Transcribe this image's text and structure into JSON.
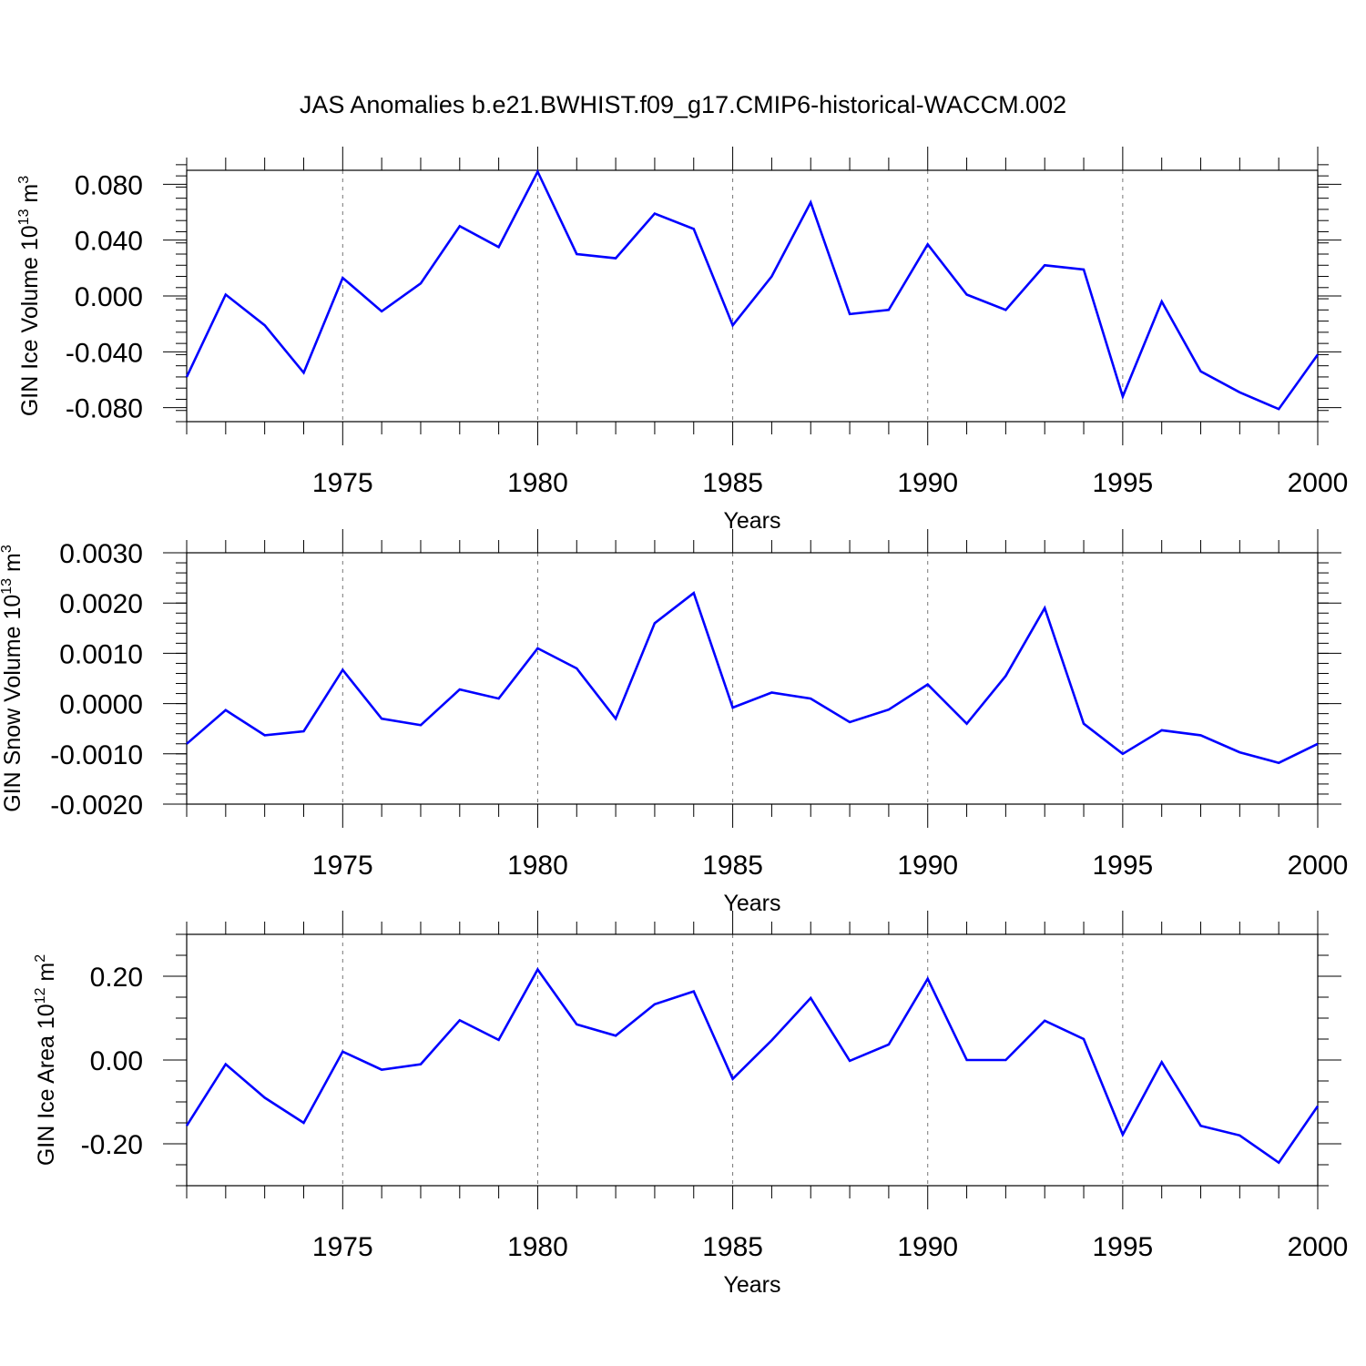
{
  "title": "JAS Anomalies b.e21.BWHIST.f09_g17.CMIP6-historical-WACCM.002",
  "colors": {
    "series": "#0000ff",
    "axis": "#000000",
    "grid": "#777777"
  },
  "chart_data": [
    {
      "type": "line",
      "name": "ice-volume",
      "ylabel": {
        "text": "GIN Ice Volume 10",
        "sup": "13",
        "unit": " m",
        "unit_sup": "3"
      },
      "xlabel": "Years",
      "xlim": [
        1971,
        2000
      ],
      "ylim": [
        -0.09,
        0.09
      ],
      "yticks": [
        -0.08,
        -0.04,
        0.0,
        0.04,
        0.08
      ],
      "ytick_labels": [
        "-0.080",
        "-0.040",
        "0.000",
        "0.040",
        "0.080"
      ],
      "yminor_step": 0.008,
      "xticks": [
        1975,
        1980,
        1985,
        1990,
        1995,
        2000
      ],
      "xtick_labels": [
        "1975",
        "1980",
        "1985",
        "1990",
        "1995",
        "2000"
      ],
      "grid_x": [
        1975,
        1980,
        1985,
        1990,
        1995
      ],
      "x": [
        1971,
        1972,
        1973,
        1974,
        1975,
        1976,
        1977,
        1978,
        1979,
        1980,
        1981,
        1982,
        1983,
        1984,
        1985,
        1986,
        1987,
        1988,
        1989,
        1990,
        1991,
        1992,
        1993,
        1994,
        1995,
        1996,
        1997,
        1998,
        1999,
        2000
      ],
      "values": [
        -0.058,
        0.001,
        -0.021,
        -0.055,
        0.013,
        -0.011,
        0.009,
        0.05,
        0.035,
        0.089,
        0.03,
        0.027,
        0.059,
        0.048,
        -0.021,
        0.014,
        0.067,
        -0.013,
        -0.01,
        0.037,
        0.001,
        -0.01,
        0.022,
        0.019,
        -0.072,
        -0.004,
        -0.054,
        -0.069,
        -0.081,
        -0.042
      ]
    },
    {
      "type": "line",
      "name": "snow-volume",
      "ylabel": {
        "text": "GIN Snow Volume 10",
        "sup": "13",
        "unit": " m",
        "unit_sup": "3"
      },
      "xlabel": "Years",
      "xlim": [
        1971,
        2000
      ],
      "ylim": [
        -0.002,
        0.003
      ],
      "yticks": [
        -0.002,
        -0.001,
        0.0,
        0.001,
        0.002,
        0.003
      ],
      "ytick_labels": [
        "-0.0020",
        "-0.0010",
        "0.0000",
        "0.0010",
        "0.0020",
        "0.0030"
      ],
      "yminor_step": 0.0002,
      "xticks": [
        1975,
        1980,
        1985,
        1990,
        1995,
        2000
      ],
      "xtick_labels": [
        "1975",
        "1980",
        "1985",
        "1990",
        "1995",
        "2000"
      ],
      "grid_x": [
        1975,
        1980,
        1985,
        1990,
        1995
      ],
      "x": [
        1971,
        1972,
        1973,
        1974,
        1975,
        1976,
        1977,
        1978,
        1979,
        1980,
        1981,
        1982,
        1983,
        1984,
        1985,
        1986,
        1987,
        1988,
        1989,
        1990,
        1991,
        1992,
        1993,
        1994,
        1995,
        1996,
        1997,
        1998,
        1999,
        2000
      ],
      "values": [
        -0.0008,
        -0.00013,
        -0.00063,
        -0.00055,
        0.00067,
        -0.0003,
        -0.00043,
        0.00028,
        0.0001,
        0.0011,
        0.0007,
        -0.0003,
        0.0016,
        0.0022,
        -8e-05,
        0.00022,
        0.0001,
        -0.00037,
        -0.00012,
        0.00038,
        -0.0004,
        0.00055,
        0.0019,
        -0.0004,
        -0.001,
        -0.00053,
        -0.00063,
        -0.00097,
        -0.00118,
        -0.0008
      ]
    },
    {
      "type": "line",
      "name": "ice-area",
      "ylabel": {
        "text": "GIN Ice Area 10",
        "sup": "12",
        "unit": " m",
        "unit_sup": "2"
      },
      "xlabel": "Years",
      "xlim": [
        1971,
        2000
      ],
      "ylim": [
        -0.3,
        0.3
      ],
      "yticks": [
        -0.2,
        0.0,
        0.2
      ],
      "ytick_labels": [
        "-0.20",
        "0.00",
        "0.20"
      ],
      "yminor_step": 0.05,
      "xticks": [
        1975,
        1980,
        1985,
        1990,
        1995,
        2000
      ],
      "xtick_labels": [
        "1975",
        "1980",
        "1985",
        "1990",
        "1995",
        "2000"
      ],
      "grid_x": [
        1975,
        1980,
        1985,
        1990,
        1995
      ],
      "x": [
        1971,
        1972,
        1973,
        1974,
        1975,
        1976,
        1977,
        1978,
        1979,
        1980,
        1981,
        1982,
        1983,
        1984,
        1985,
        1986,
        1987,
        1988,
        1989,
        1990,
        1991,
        1992,
        1993,
        1994,
        1995,
        1996,
        1997,
        1998,
        1999,
        2000
      ],
      "values": [
        -0.157,
        -0.01,
        -0.09,
        -0.15,
        0.02,
        -0.023,
        -0.01,
        0.095,
        0.048,
        0.216,
        0.085,
        0.058,
        0.133,
        0.164,
        -0.045,
        0.047,
        0.148,
        -0.002,
        0.037,
        0.194,
        0.0,
        0.0,
        0.094,
        0.05,
        -0.178,
        -0.005,
        -0.157,
        -0.18,
        -0.245,
        -0.11
      ]
    }
  ]
}
